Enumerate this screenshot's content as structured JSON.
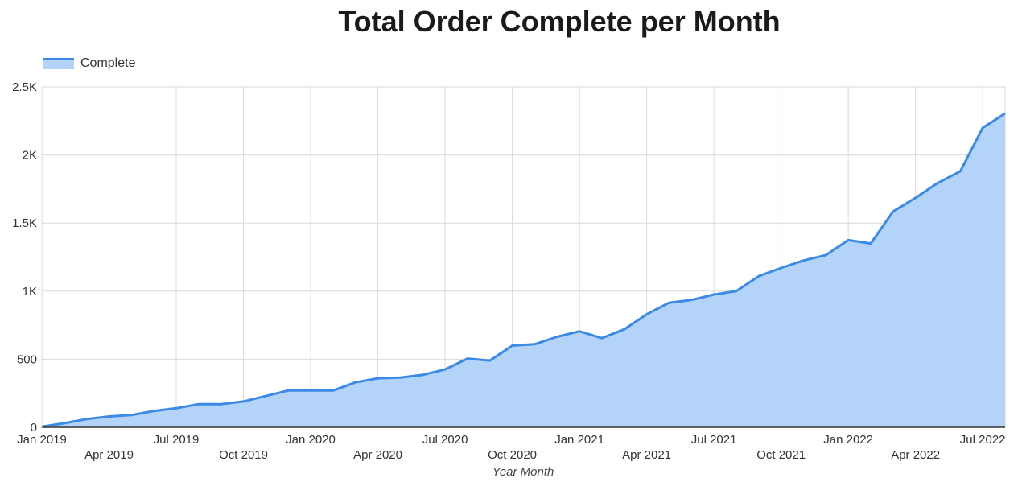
{
  "chart_data": {
    "type": "area",
    "title": "Total Order Complete per Month",
    "xlabel": "Year Month",
    "ylabel": "",
    "legend": {
      "position": "top-left",
      "entries": [
        "Complete"
      ]
    },
    "grid": true,
    "ylim": [
      0,
      2500
    ],
    "yticks": [
      {
        "value": 0,
        "label": "0"
      },
      {
        "value": 500,
        "label": "500"
      },
      {
        "value": 1000,
        "label": "1K"
      },
      {
        "value": 1500,
        "label": "1.5K"
      },
      {
        "value": 2000,
        "label": "2K"
      },
      {
        "value": 2500,
        "label": "2.5K"
      }
    ],
    "xticks": [
      "Jan 2019",
      "Apr 2019",
      "Jul 2019",
      "Oct 2019",
      "Jan 2020",
      "Apr 2020",
      "Jul 2020",
      "Oct 2020",
      "Jan 2021",
      "Apr 2021",
      "Jul 2021",
      "Oct 2021",
      "Jan 2022",
      "Apr 2022",
      "Jul 2022"
    ],
    "x": [
      "2019-01",
      "2019-02",
      "2019-03",
      "2019-04",
      "2019-05",
      "2019-06",
      "2019-07",
      "2019-08",
      "2019-09",
      "2019-10",
      "2019-11",
      "2019-12",
      "2020-01",
      "2020-02",
      "2020-03",
      "2020-04",
      "2020-05",
      "2020-06",
      "2020-07",
      "2020-08",
      "2020-09",
      "2020-10",
      "2020-11",
      "2020-12",
      "2021-01",
      "2021-02",
      "2021-03",
      "2021-04",
      "2021-05",
      "2021-06",
      "2021-07",
      "2021-08",
      "2021-09",
      "2021-10",
      "2021-11",
      "2021-12",
      "2022-01",
      "2022-02",
      "2022-03",
      "2022-04",
      "2022-05",
      "2022-06",
      "2022-07",
      "2022-08"
    ],
    "series": [
      {
        "name": "Complete",
        "color": "#3b8ae6",
        "fill": "#b3d4f8",
        "values": [
          5,
          30,
          60,
          80,
          90,
          120,
          140,
          170,
          170,
          190,
          230,
          270,
          270,
          270,
          330,
          360,
          365,
          385,
          425,
          505,
          490,
          600,
          610,
          665,
          705,
          655,
          720,
          830,
          915,
          935,
          975,
          1000,
          1110,
          1170,
          1225,
          1265,
          1375,
          1350,
          1585,
          1685,
          1795,
          1880,
          2200,
          2305
        ]
      }
    ]
  }
}
